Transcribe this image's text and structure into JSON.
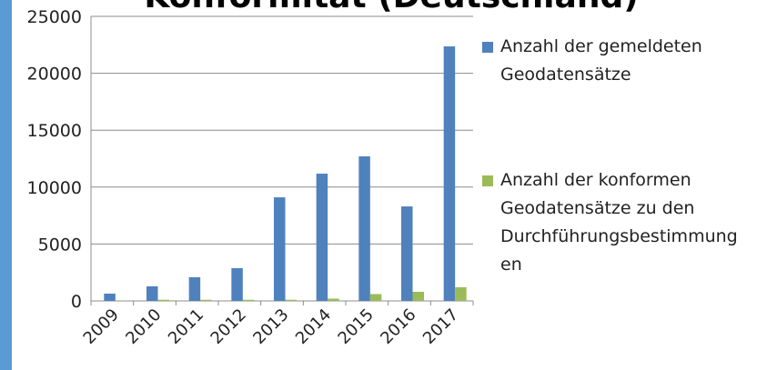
{
  "chart_data": {
    "type": "bar",
    "title": "Konformität (Deutschland)",
    "categories": [
      "2009",
      "2010",
      "2011",
      "2012",
      "2013",
      "2014",
      "2015",
      "2016",
      "2017"
    ],
    "series": [
      {
        "name": "Anzahl der gemeldeten Geodatensätze",
        "color": "#4f81bd",
        "values": [
          640,
          1280,
          2080,
          2880,
          9100,
          11180,
          12700,
          8300,
          22360
        ]
      },
      {
        "name": "Anzahl der konformen Geodatensätze zu den Durchführungsbestimmungen",
        "color": "#9bbb59",
        "values": [
          20,
          100,
          100,
          100,
          100,
          200,
          600,
          800,
          1200
        ]
      }
    ],
    "ylim": [
      0,
      25000
    ],
    "yticks": [
      0,
      5000,
      10000,
      15000,
      20000,
      25000
    ],
    "grid": true,
    "legend": "right"
  }
}
